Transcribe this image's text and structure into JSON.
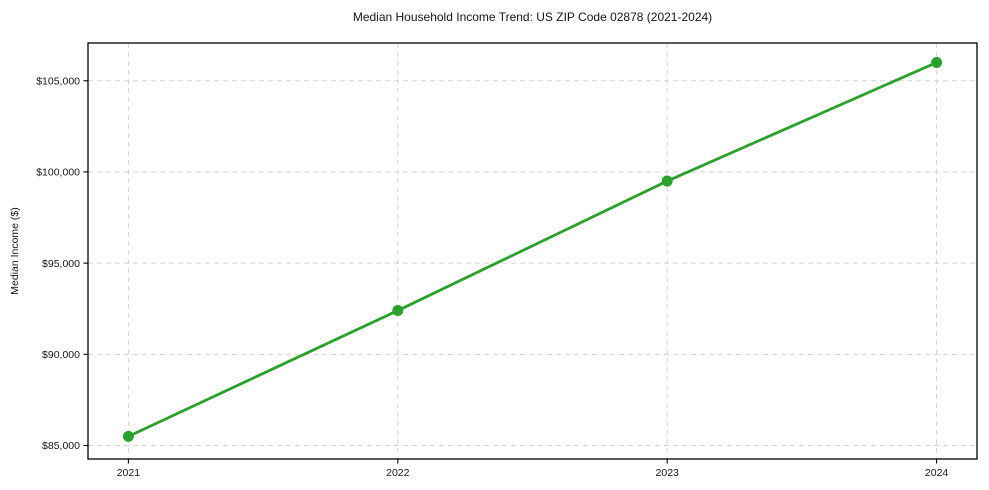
{
  "chart_data": {
    "type": "line",
    "title": "Median Household Income Trend: US ZIP Code 02878 (2021-2024)",
    "xlabel": "",
    "ylabel": "Median Income ($)",
    "x": [
      2021,
      2022,
      2023,
      2024
    ],
    "values": [
      85500,
      92400,
      99500,
      106000
    ],
    "xticks": [
      2021,
      2022,
      2023,
      2024
    ],
    "xtick_labels": [
      "2021",
      "2022",
      "2023",
      "2024"
    ],
    "yticks": [
      85000,
      90000,
      95000,
      100000,
      105000
    ],
    "ytick_labels": [
      "$85,000",
      "$90,000",
      "$95,000",
      "$100,000",
      "$105,000"
    ],
    "xlim": [
      2020.85,
      2024.15
    ],
    "ylim": [
      84260,
      107070
    ],
    "grid": true,
    "legend_position": "none",
    "line_color": "#2ca02c",
    "marker": "circle",
    "grid_color": "#d3d3d3",
    "axis_color": "#000000",
    "tick_label_color": "#151515"
  }
}
